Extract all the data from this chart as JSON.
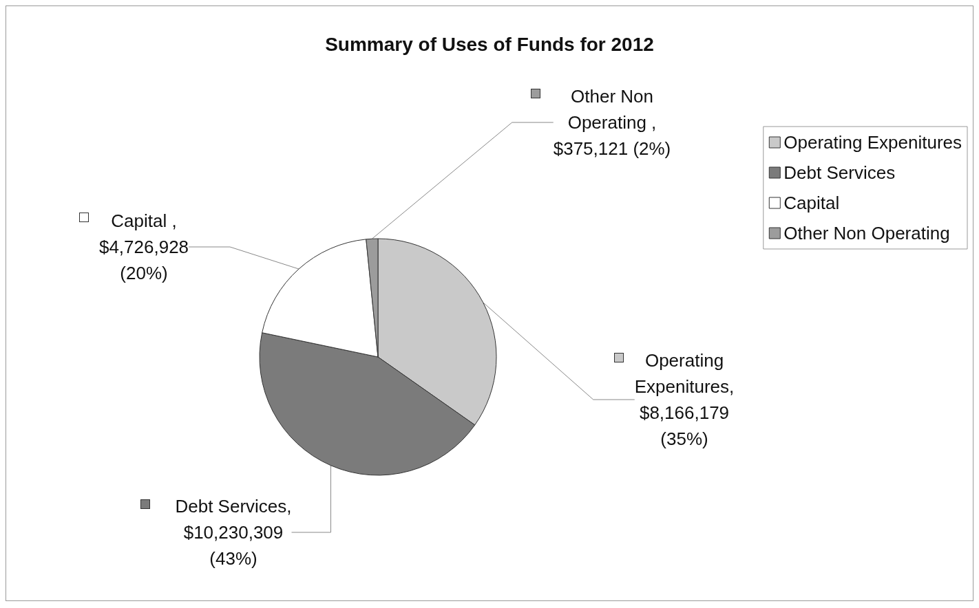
{
  "chart_data": {
    "type": "pie",
    "title": "Summary of Uses of Funds for 2012",
    "categories": [
      "Operating Expenitures",
      "Debt Services",
      "Capital",
      "Other Non Operating"
    ],
    "values": [
      8166179,
      10230309,
      4726928,
      375121
    ],
    "colors": [
      "#c9c9c9",
      "#7b7b7b",
      "#ffffff",
      "#9c9c9c"
    ],
    "value_labels": [
      "Operating\nExpenitures,\n$8,166,179\n(35%)",
      "Debt Services,\n$10,230,309\n(43%)",
      "Capital ,\n$4,726,928\n(20%)",
      "Other Non\nOperating ,\n$375,121 (2%)"
    ],
    "legend": "top right"
  }
}
